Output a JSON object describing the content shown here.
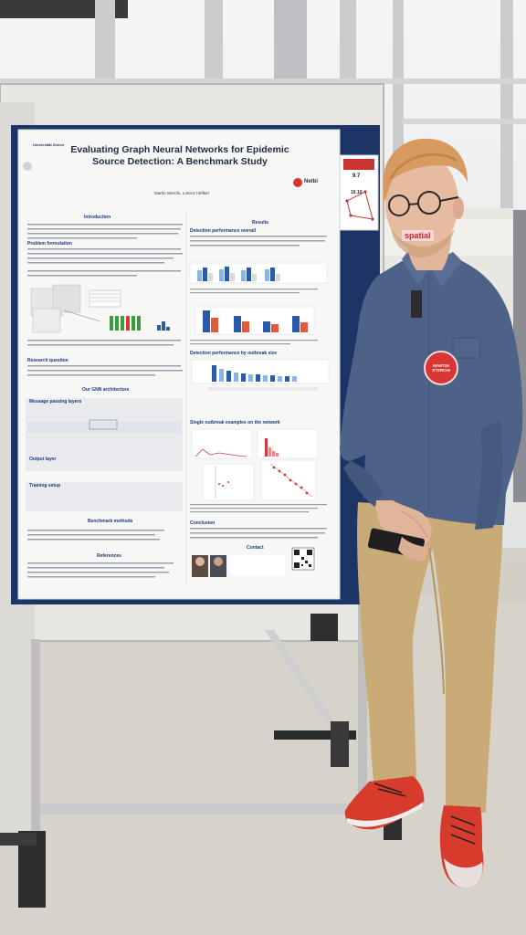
{
  "poster": {
    "title": "Evaluating Graph Neural Networks for Epidemic Source Detection: A Benchmark Study",
    "authors": "Martin Sterchi, Lorenz Hilfiker",
    "institution": "Universität Zürich",
    "logo_right": "Netbi",
    "sections": {
      "introduction": "Introduction",
      "problem": "Problem formulation",
      "research_question": "Research question",
      "gnn": "Our GNN architecture",
      "message_passing": "Message passing layers",
      "output": "Output layer",
      "training": "Training setup",
      "benchmark": "Benchmark methods",
      "references": "References",
      "results": "Results",
      "detection": "Detection performance overall",
      "detection_size": "Detection performance by outbreak size",
      "single_run": "Single outbreak examples on the network",
      "conclusion": "Conclusion",
      "contact": "Contact"
    }
  },
  "side_sign": {
    "number_top": "9.7",
    "number_bottom": "10.10"
  },
  "badge": {
    "line1": "MARTIN",
    "line2": "STERCHI"
  },
  "background_sign": {
    "text": "spatial"
  },
  "colors": {
    "poster_border": "#1d3566",
    "bar_blue": "#2c5aa8",
    "bar_light": "#8fb3e3",
    "bar_green": "#3d9a3d",
    "bar_red": "#cc3b3b",
    "shirt": "#4d6286",
    "pants": "#c9ab78",
    "badge": "#d93535"
  }
}
